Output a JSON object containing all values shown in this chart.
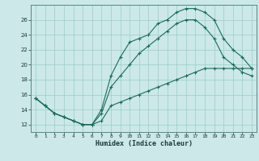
{
  "title": "",
  "xlabel": "Humidex (Indice chaleur)",
  "ylabel": "",
  "bg_color": "#cce8e8",
  "grid_color": "#99cccc",
  "line_color": "#1a6b5a",
  "xlim": [
    -0.5,
    23.5
  ],
  "ylim": [
    11,
    28
  ],
  "xticks": [
    0,
    1,
    2,
    3,
    4,
    5,
    6,
    7,
    8,
    9,
    10,
    11,
    12,
    13,
    14,
    15,
    16,
    17,
    18,
    19,
    20,
    21,
    22,
    23
  ],
  "yticks": [
    12,
    14,
    16,
    18,
    20,
    22,
    24,
    26
  ],
  "hours": [
    0,
    1,
    2,
    3,
    4,
    5,
    6,
    7,
    8,
    9,
    10,
    11,
    12,
    13,
    14,
    15,
    16,
    17,
    18,
    19,
    20,
    21,
    22,
    23
  ],
  "line_top": [
    15.5,
    14.5,
    13.5,
    13.0,
    12.5,
    12.0,
    12.0,
    14.0,
    18.5,
    21.0,
    23.0,
    23.5,
    24.0,
    25.5,
    26.0,
    27.0,
    27.5,
    27.5,
    27.0,
    26.0,
    23.5,
    22.0,
    21.0,
    19.5
  ],
  "line_mid": [
    15.5,
    14.5,
    13.5,
    13.0,
    12.5,
    12.0,
    12.0,
    13.5,
    17.0,
    18.5,
    20.0,
    21.5,
    22.5,
    23.5,
    24.5,
    25.5,
    26.0,
    26.0,
    25.0,
    23.5,
    21.0,
    20.0,
    19.0,
    18.5
  ],
  "line_bot": [
    15.5,
    14.5,
    13.5,
    13.0,
    12.5,
    12.0,
    12.0,
    12.5,
    14.5,
    15.0,
    15.5,
    16.0,
    16.5,
    17.0,
    17.5,
    18.0,
    18.5,
    19.0,
    19.5,
    19.5,
    19.5,
    19.5,
    19.5,
    19.5
  ]
}
